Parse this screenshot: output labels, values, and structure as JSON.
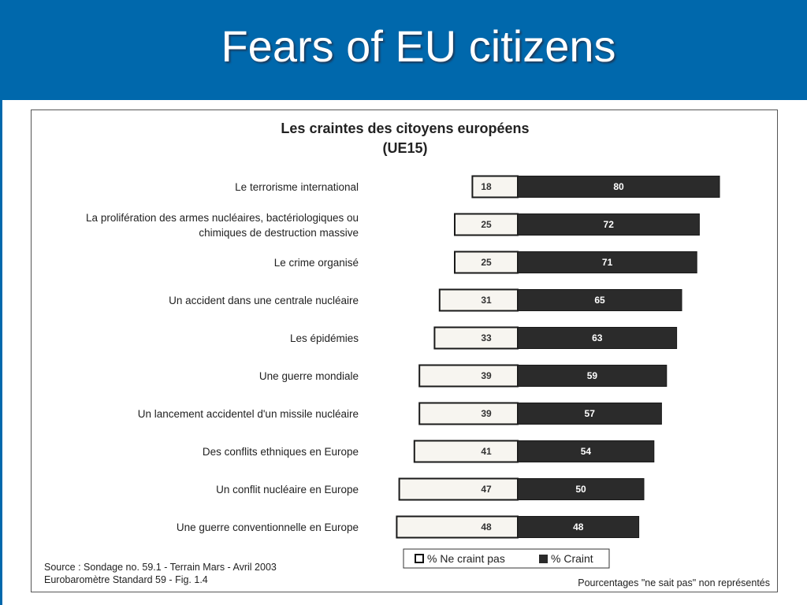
{
  "slide": {
    "title": "Fears of EU citizens"
  },
  "colors": {
    "header": "#0068ac",
    "bar_fear": "#2b2b2b",
    "bar_no_fear": "#f7f5f0",
    "bar_border": "#1a1a1a"
  },
  "chart_data": {
    "type": "bar",
    "orientation": "horizontal",
    "stacked": true,
    "title": "Les craintes des citoyens européens",
    "subtitle": "(UE15)",
    "categories": [
      "Le terrorisme international",
      "La prolifération des armes nucléaires, bactériologiques ou chimiques de destruction massive",
      "Le crime organisé",
      "Un accident dans une centrale nucléaire",
      "Les épidémies",
      "Une guerre mondiale",
      "Un lancement accidentel d'un missile nucléaire",
      "Des conflits ethniques en Europe",
      "Un conflit nucléaire en Europe",
      "Une guerre conventionnelle en Europe"
    ],
    "category_lines": [
      [
        "Le terrorisme international"
      ],
      [
        "La prolifération des armes nucléaires, bactériologiques ou",
        "chimiques de destruction massive"
      ],
      [
        "Le crime organisé"
      ],
      [
        "Un accident dans une centrale nucléaire"
      ],
      [
        "Les épidémies"
      ],
      [
        "Une guerre mondiale"
      ],
      [
        "Un lancement accidentel d'un missile nucléaire"
      ],
      [
        "Des conflits ethniques en Europe"
      ],
      [
        "Un conflit nucléaire en Europe"
      ],
      [
        "Une guerre conventionnelle en Europe"
      ]
    ],
    "series": [
      {
        "name": "% Ne craint pas",
        "values": [
          18,
          25,
          25,
          31,
          33,
          39,
          39,
          41,
          47,
          48
        ]
      },
      {
        "name": "% Craint",
        "values": [
          80,
          72,
          71,
          65,
          63,
          59,
          57,
          54,
          50,
          48
        ]
      }
    ],
    "legend_position": "bottom-center",
    "grid": false,
    "source_lines": [
      "Source : Sondage no. 59.1 - Terrain Mars - Avril 2003",
      "Eurobaromètre Standard 59 - Fig. 1.4"
    ],
    "footnote": "Pourcentages \"ne sait pas\" non représentés"
  }
}
